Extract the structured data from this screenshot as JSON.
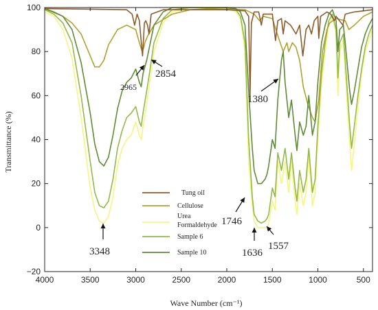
{
  "chart_data": {
    "type": "line",
    "xlabel": "Wave Number (cm⁻¹)",
    "ylabel": "Transmittance (%)",
    "xlim": [
      4000,
      400
    ],
    "ylim": [
      -20,
      100
    ],
    "x_ticks": [
      4000,
      3500,
      3000,
      2500,
      2000,
      1500,
      1000,
      500
    ],
    "y_ticks": [
      -20,
      0,
      20,
      40,
      60,
      80,
      100
    ],
    "x_tick_labels": [
      "4000",
      "3500",
      "3000",
      "2500",
      "2000",
      "1500",
      "1000",
      "500"
    ],
    "y_tick_labels": [
      "−20",
      "0",
      "20",
      "40",
      "60",
      "80",
      "100"
    ],
    "grid": false,
    "legend_position": "lower-center",
    "series": [
      {
        "name": "Tung oil",
        "color": "#8B5A2B",
        "points": [
          [
            4000,
            99.5
          ],
          [
            3600,
            99.3
          ],
          [
            3100,
            99
          ],
          [
            3040,
            97
          ],
          [
            3012,
            92
          ],
          [
            2985,
            97
          ],
          [
            2960,
            94
          ],
          [
            2925,
            78
          ],
          [
            2905,
            93
          ],
          [
            2890,
            94
          ],
          [
            2870,
            92
          ],
          [
            2854,
            88
          ],
          [
            2830,
            97
          ],
          [
            2700,
            99
          ],
          [
            2000,
            99
          ],
          [
            1800,
            98.5
          ],
          [
            1760,
            96
          ],
          [
            1745,
            60
          ],
          [
            1730,
            93
          ],
          [
            1700,
            98
          ],
          [
            1650,
            98
          ],
          [
            1620,
            92
          ],
          [
            1600,
            97
          ],
          [
            1500,
            97
          ],
          [
            1465,
            85
          ],
          [
            1440,
            94
          ],
          [
            1400,
            95
          ],
          [
            1380,
            88
          ],
          [
            1360,
            94
          ],
          [
            1300,
            92
          ],
          [
            1240,
            88
          ],
          [
            1200,
            92
          ],
          [
            1165,
            78
          ],
          [
            1130,
            90
          ],
          [
            1100,
            92
          ],
          [
            1070,
            88
          ],
          [
            1040,
            94
          ],
          [
            1000,
            96
          ],
          [
            990,
            86
          ],
          [
            970,
            96
          ],
          [
            900,
            98
          ],
          [
            860,
            97
          ],
          [
            820,
            94
          ],
          [
            800,
            96
          ],
          [
            725,
            92
          ],
          [
            700,
            97
          ],
          [
            600,
            98
          ],
          [
            400,
            99
          ]
        ]
      },
      {
        "name": "Cellulose",
        "color": "#B0A030",
        "points": [
          [
            4000,
            99.5
          ],
          [
            3800,
            96
          ],
          [
            3700,
            93
          ],
          [
            3600,
            88
          ],
          [
            3500,
            78
          ],
          [
            3450,
            73
          ],
          [
            3400,
            73
          ],
          [
            3350,
            76
          ],
          [
            3300,
            83
          ],
          [
            3200,
            90
          ],
          [
            3100,
            92
          ],
          [
            3000,
            90
          ],
          [
            2960,
            84
          ],
          [
            2930,
            80
          ],
          [
            2910,
            82
          ],
          [
            2900,
            84
          ],
          [
            2870,
            87
          ],
          [
            2800,
            92
          ],
          [
            2600,
            97
          ],
          [
            2400,
            99
          ],
          [
            2200,
            99.5
          ],
          [
            1800,
            99
          ],
          [
            1700,
            97
          ],
          [
            1640,
            94
          ],
          [
            1600,
            96
          ],
          [
            1500,
            95
          ],
          [
            1430,
            86
          ],
          [
            1380,
            80
          ],
          [
            1340,
            84
          ],
          [
            1320,
            80
          ],
          [
            1280,
            84
          ],
          [
            1240,
            82
          ],
          [
            1200,
            76
          ],
          [
            1160,
            64
          ],
          [
            1110,
            56
          ],
          [
            1060,
            50
          ],
          [
            1030,
            48
          ],
          [
            990,
            58
          ],
          [
            950,
            80
          ],
          [
            900,
            90
          ],
          [
            870,
            93
          ],
          [
            800,
            95
          ],
          [
            700,
            94
          ],
          [
            660,
            90
          ],
          [
            600,
            92
          ],
          [
            550,
            94
          ],
          [
            500,
            96
          ],
          [
            450,
            97
          ],
          [
            400,
            98
          ]
        ]
      },
      {
        "name": "Urea Formaldehyde",
        "color": "#F5F582",
        "points": [
          [
            4000,
            98
          ],
          [
            3900,
            96
          ],
          [
            3800,
            90
          ],
          [
            3700,
            77
          ],
          [
            3600,
            50
          ],
          [
            3500,
            18
          ],
          [
            3450,
            8
          ],
          [
            3400,
            3
          ],
          [
            3350,
            2
          ],
          [
            3300,
            5
          ],
          [
            3250,
            14
          ],
          [
            3200,
            28
          ],
          [
            3150,
            36
          ],
          [
            3100,
            40
          ],
          [
            3050,
            42
          ],
          [
            3000,
            48
          ],
          [
            2960,
            42
          ],
          [
            2940,
            40
          ],
          [
            2920,
            46
          ],
          [
            2880,
            56
          ],
          [
            2850,
            65
          ],
          [
            2800,
            80
          ],
          [
            2700,
            93
          ],
          [
            2600,
            98
          ],
          [
            2400,
            100
          ],
          [
            2000,
            100
          ],
          [
            1900,
            98
          ],
          [
            1850,
            95
          ],
          [
            1800,
            80
          ],
          [
            1760,
            30
          ],
          [
            1720,
            10
          ],
          [
            1700,
            3
          ],
          [
            1660,
            0
          ],
          [
            1620,
            0
          ],
          [
            1580,
            0
          ],
          [
            1560,
            0
          ],
          [
            1540,
            2
          ],
          [
            1500,
            12
          ],
          [
            1470,
            8
          ],
          [
            1440,
            30
          ],
          [
            1400,
            20
          ],
          [
            1360,
            30
          ],
          [
            1320,
            16
          ],
          [
            1290,
            30
          ],
          [
            1250,
            12
          ],
          [
            1230,
            6
          ],
          [
            1200,
            20
          ],
          [
            1160,
            10
          ],
          [
            1130,
            16
          ],
          [
            1100,
            32
          ],
          [
            1060,
            10
          ],
          [
            1030,
            16
          ],
          [
            1000,
            40
          ],
          [
            960,
            65
          ],
          [
            920,
            80
          ],
          [
            880,
            92
          ],
          [
            840,
            96
          ],
          [
            800,
            88
          ],
          [
            780,
            60
          ],
          [
            760,
            80
          ],
          [
            720,
            85
          ],
          [
            700,
            70
          ],
          [
            650,
            38
          ],
          [
            630,
            26
          ],
          [
            600,
            38
          ],
          [
            560,
            55
          ],
          [
            520,
            70
          ],
          [
            480,
            80
          ],
          [
            440,
            85
          ],
          [
            400,
            90
          ]
        ]
      },
      {
        "name": "Sample 6",
        "color": "#93B84A",
        "points": [
          [
            4000,
            99
          ],
          [
            3900,
            97
          ],
          [
            3800,
            93
          ],
          [
            3700,
            84
          ],
          [
            3600,
            60
          ],
          [
            3500,
            30
          ],
          [
            3450,
            16
          ],
          [
            3400,
            10
          ],
          [
            3350,
            9
          ],
          [
            3300,
            12
          ],
          [
            3250,
            22
          ],
          [
            3200,
            36
          ],
          [
            3150,
            44
          ],
          [
            3100,
            50
          ],
          [
            3050,
            52
          ],
          [
            3000,
            55
          ],
          [
            2960,
            48
          ],
          [
            2940,
            46
          ],
          [
            2920,
            52
          ],
          [
            2880,
            62
          ],
          [
            2850,
            70
          ],
          [
            2800,
            84
          ],
          [
            2700,
            95
          ],
          [
            2600,
            99
          ],
          [
            2400,
            100
          ],
          [
            2000,
            100
          ],
          [
            1900,
            99
          ],
          [
            1850,
            96
          ],
          [
            1800,
            84
          ],
          [
            1760,
            40
          ],
          [
            1720,
            14
          ],
          [
            1700,
            6
          ],
          [
            1660,
            3
          ],
          [
            1620,
            2
          ],
          [
            1580,
            3
          ],
          [
            1560,
            4
          ],
          [
            1540,
            6
          ],
          [
            1500,
            18
          ],
          [
            1470,
            14
          ],
          [
            1440,
            34
          ],
          [
            1400,
            26
          ],
          [
            1360,
            36
          ],
          [
            1320,
            22
          ],
          [
            1290,
            34
          ],
          [
            1250,
            18
          ],
          [
            1230,
            12
          ],
          [
            1200,
            26
          ],
          [
            1160,
            16
          ],
          [
            1130,
            22
          ],
          [
            1100,
            36
          ],
          [
            1060,
            16
          ],
          [
            1030,
            22
          ],
          [
            1000,
            46
          ],
          [
            960,
            70
          ],
          [
            920,
            84
          ],
          [
            880,
            94
          ],
          [
            840,
            97
          ],
          [
            800,
            90
          ],
          [
            780,
            68
          ],
          [
            760,
            84
          ],
          [
            720,
            88
          ],
          [
            700,
            76
          ],
          [
            650,
            46
          ],
          [
            630,
            36
          ],
          [
            600,
            46
          ],
          [
            560,
            60
          ],
          [
            520,
            72
          ],
          [
            480,
            82
          ],
          [
            440,
            88
          ],
          [
            400,
            92
          ]
        ]
      },
      {
        "name": "Sample 10",
        "color": "#5E8A35",
        "points": [
          [
            4000,
            99.5
          ],
          [
            3900,
            98
          ],
          [
            3800,
            96
          ],
          [
            3700,
            90
          ],
          [
            3600,
            75
          ],
          [
            3500,
            52
          ],
          [
            3450,
            38
          ],
          [
            3400,
            30
          ],
          [
            3350,
            28
          ],
          [
            3300,
            32
          ],
          [
            3250,
            42
          ],
          [
            3200,
            54
          ],
          [
            3150,
            62
          ],
          [
            3100,
            66
          ],
          [
            3050,
            68
          ],
          [
            3000,
            72
          ],
          [
            2960,
            66
          ],
          [
            2940,
            64
          ],
          [
            2920,
            70
          ],
          [
            2880,
            76
          ],
          [
            2850,
            82
          ],
          [
            2800,
            92
          ],
          [
            2700,
            98
          ],
          [
            2600,
            100
          ],
          [
            2000,
            100
          ],
          [
            1900,
            99.5
          ],
          [
            1850,
            98
          ],
          [
            1800,
            92
          ],
          [
            1760,
            62
          ],
          [
            1720,
            36
          ],
          [
            1700,
            26
          ],
          [
            1660,
            20
          ],
          [
            1620,
            20
          ],
          [
            1580,
            22
          ],
          [
            1560,
            24
          ],
          [
            1540,
            28
          ],
          [
            1500,
            40
          ],
          [
            1470,
            36
          ],
          [
            1440,
            58
          ],
          [
            1400,
            76
          ],
          [
            1380,
            80
          ],
          [
            1360,
            66
          ],
          [
            1320,
            50
          ],
          [
            1290,
            58
          ],
          [
            1250,
            42
          ],
          [
            1230,
            35
          ],
          [
            1200,
            48
          ],
          [
            1160,
            42
          ],
          [
            1130,
            46
          ],
          [
            1100,
            60
          ],
          [
            1060,
            42
          ],
          [
            1030,
            48
          ],
          [
            1000,
            66
          ],
          [
            960,
            84
          ],
          [
            920,
            92
          ],
          [
            880,
            97
          ],
          [
            840,
            99
          ],
          [
            800,
            94
          ],
          [
            780,
            80
          ],
          [
            760,
            90
          ],
          [
            720,
            92
          ],
          [
            700,
            84
          ],
          [
            650,
            62
          ],
          [
            630,
            56
          ],
          [
            600,
            62
          ],
          [
            560,
            72
          ],
          [
            520,
            82
          ],
          [
            480,
            88
          ],
          [
            440,
            92
          ],
          [
            400,
            95
          ]
        ]
      }
    ],
    "annotations": [
      {
        "label": "2965",
        "x": 2965,
        "y": 75
      },
      {
        "label": "2854",
        "x": 2854,
        "y": 75
      },
      {
        "label": "1380",
        "x": 1380,
        "y": 67
      },
      {
        "label": "3348",
        "x": 3348,
        "y": 2
      },
      {
        "label": "1746",
        "x": 1746,
        "y": 14
      },
      {
        "label": "1636",
        "x": 1636,
        "y": 0
      },
      {
        "label": "1557",
        "x": 1557,
        "y": 0
      }
    ]
  }
}
